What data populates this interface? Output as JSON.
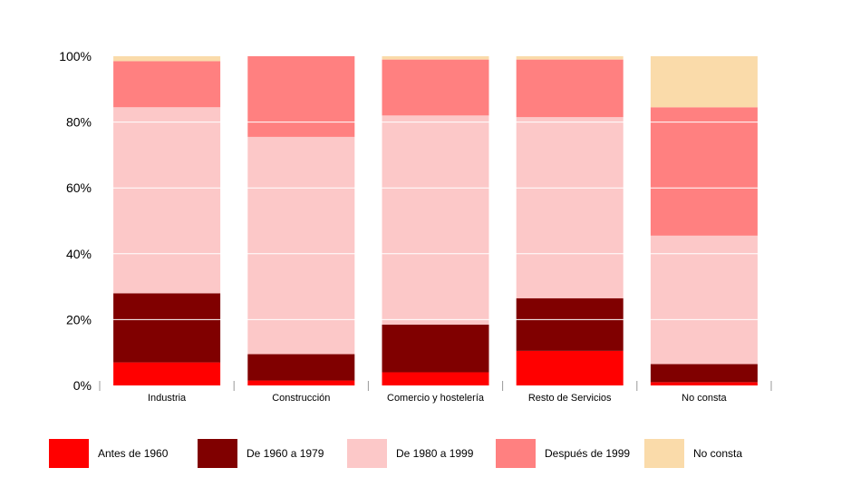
{
  "chart_data": {
    "type": "bar",
    "stacked": true,
    "percent": true,
    "categories": [
      "Industria",
      "Construcción",
      "Comercio y hostelería",
      "Resto de Servicios",
      "No consta"
    ],
    "series": [
      {
        "name": "Antes de 1960",
        "color": "#ff0000",
        "values": [
          7,
          1.5,
          4,
          10.5,
          1
        ]
      },
      {
        "name": "De 1960 a 1979",
        "color": "#800000",
        "values": [
          21,
          8,
          14.5,
          16,
          5.5
        ]
      },
      {
        "name": "De 1980 a 1999",
        "color": "#fcc8c8",
        "values": [
          56.5,
          66,
          63.5,
          55,
          39
        ]
      },
      {
        "name": "Después de 1999",
        "color": "#ff8080",
        "values": [
          14,
          24.5,
          17,
          17.5,
          39
        ]
      },
      {
        "name": "No consta",
        "color": "#fadbaa",
        "values": [
          1.5,
          0,
          1,
          1,
          15.5
        ]
      }
    ],
    "yticks": [
      "0%",
      "20%",
      "40%",
      "60%",
      "80%",
      "100%"
    ],
    "ylim": [
      0,
      100
    ],
    "grid": true,
    "legend_position": "bottom"
  }
}
